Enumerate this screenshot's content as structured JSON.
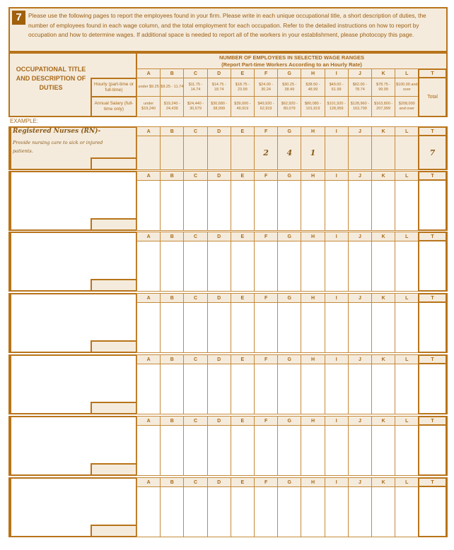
{
  "section_number": "7",
  "instructions": "Please use the following pages to report the employees found in your firm. Please write in each unique occupational title, a short description of duties, the number of employees found in each wage column, and the total employment for each occupation. Refer to the detailed instructions on how to report by occupation and how to determine wages. If additional space is needed to report all of the workers in your establishment, please photocopy this page.",
  "header": {
    "occupational_title": "OCCUPATIONAL TITLE AND DESCRIPTION OF DUTIES",
    "wage_ranges_title": "NUMBER OF EMPLOYEES IN SELECTED WAGE RANGES",
    "wage_ranges_subtitle": "(Report Part-time Workers According to an Hourly Rate)",
    "hourly_label": "Hourly (part-time or full-time)",
    "annual_label": "Annual Salary (full-time only)",
    "total_label": "Total"
  },
  "columns": [
    "A",
    "B",
    "C",
    "D",
    "E",
    "F",
    "G",
    "H",
    "I",
    "J",
    "K",
    "L"
  ],
  "total_column": "T",
  "hourly_ranges": [
    "under $9.25",
    "$9.25 - 11.74",
    "$11.75 - 14.74",
    "$14.75 - 18.74",
    "$18.75 - 23.99",
    "$24.00 - 30.24",
    "$30.25 - 38.49",
    "$38.50 - 48.99",
    "$49.00 - 61.99",
    "$62.00 - 78.74",
    "$78.75 - 99.99",
    "$100.00 and over"
  ],
  "annual_ranges": [
    "under $19,240",
    "$19,240 - 24,439",
    "$24,440 - 30,679",
    "$30,680 - 38,999",
    "$39,000 - 49,919",
    "$49,920 - 62,919",
    "$62,920 - 80,079",
    "$80,080 - 101,919",
    "$101,920 - 128,959",
    "$128,960 - 163,799",
    "$163,800 - 207,999",
    "$208,000 and over"
  ],
  "example": {
    "label": "EXAMPLE:",
    "title": "Registered Nurses (RN)-",
    "description": "Provide nursing care to sick or injured patients.",
    "values": [
      "",
      "",
      "",
      "",
      "",
      "2",
      "4",
      "1",
      "",
      "",
      "",
      ""
    ],
    "total": "7"
  },
  "blank_rows": 6,
  "colors": {
    "border": "#b8741a",
    "background": "#f5ebdc",
    "badge": "#a0600c"
  }
}
